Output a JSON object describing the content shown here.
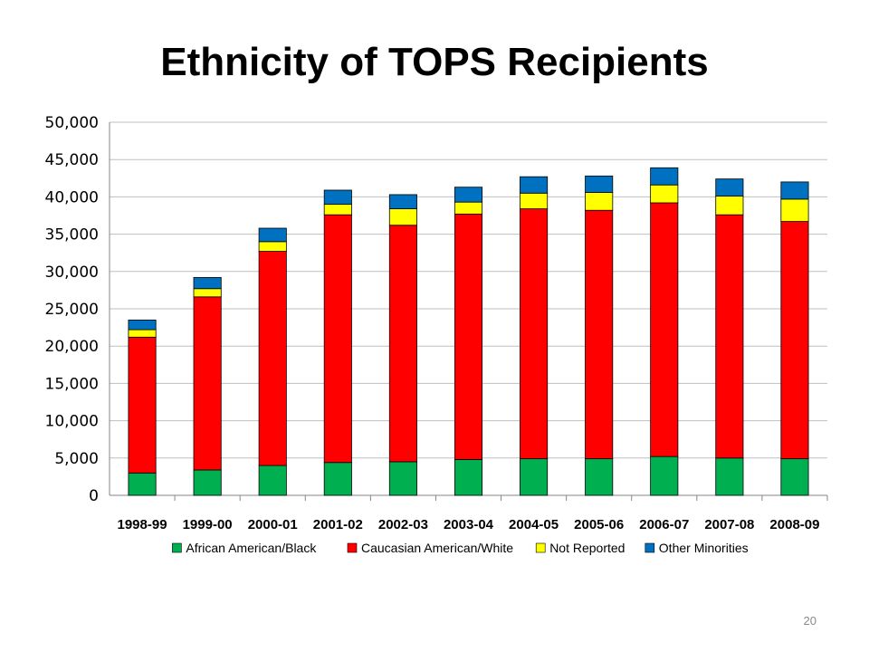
{
  "slide": {
    "title": "Ethnicity of TOPS Recipients",
    "page_number": "20"
  },
  "chart_data": {
    "type": "bar",
    "stacked": true,
    "title": "Ethnicity of TOPS Recipients",
    "xlabel": "",
    "ylabel": "",
    "ylim": [
      0,
      50000
    ],
    "yticks": [
      0,
      5000,
      10000,
      15000,
      20000,
      25000,
      30000,
      35000,
      40000,
      45000,
      50000
    ],
    "ytick_labels": [
      "0",
      "5,000",
      "10,000",
      "15,000",
      "20,000",
      "25,000",
      "30,000",
      "35,000",
      "40,000",
      "45,000",
      "50,000"
    ],
    "grid": true,
    "legend_position": "bottom",
    "categories": [
      "1998-99",
      "1999-00",
      "2000-01",
      "2001-02",
      "2002-03",
      "2003-04",
      "2004-05",
      "2005-06",
      "2006-07",
      "2007-08",
      "2008-09"
    ],
    "series": [
      {
        "name": "African American/Black",
        "color": "#00b050",
        "values": [
          3000,
          3400,
          4000,
          4400,
          4500,
          4800,
          4900,
          4900,
          5200,
          5000,
          4900
        ]
      },
      {
        "name": "Caucasian American/White",
        "color": "#ff0000",
        "values": [
          18200,
          23200,
          28700,
          33200,
          31700,
          32900,
          33500,
          33300,
          34000,
          32600,
          31800
        ]
      },
      {
        "name": "Not Reported",
        "color": "#ffff00",
        "values": [
          1000,
          1100,
          1300,
          1400,
          2200,
          1600,
          2100,
          2400,
          2400,
          2500,
          3000
        ]
      },
      {
        "name": "Other Minorities",
        "color": "#0070c0",
        "values": [
          1300,
          1500,
          1800,
          1900,
          1900,
          2000,
          2200,
          2200,
          2300,
          2300,
          2300
        ]
      }
    ]
  }
}
